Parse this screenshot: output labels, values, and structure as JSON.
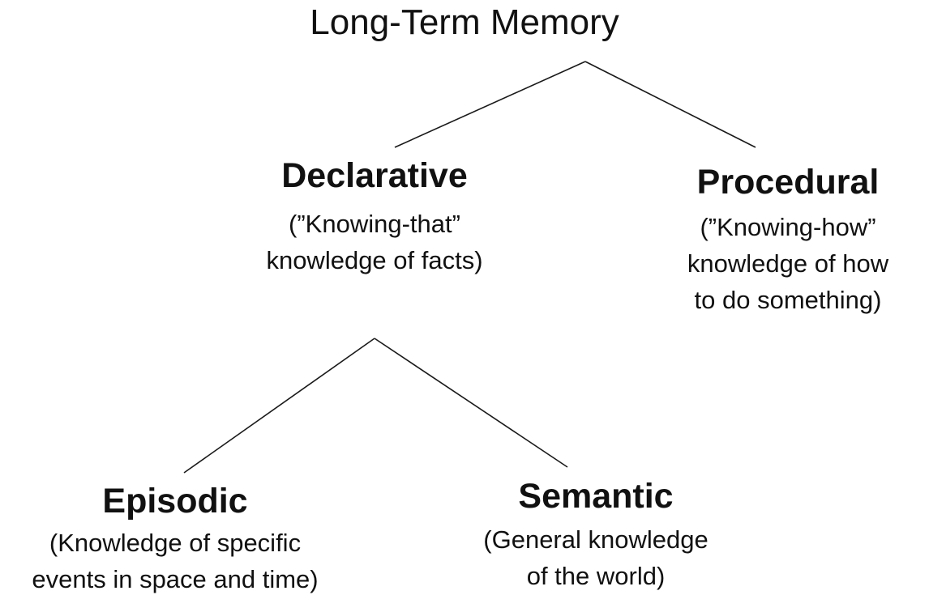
{
  "root": {
    "title": "Long-Term Memory"
  },
  "declarative": {
    "title": "Declarative",
    "desc_line1": "(”Knowing-that”",
    "desc_line2": "knowledge of facts)"
  },
  "procedural": {
    "title": "Procedural",
    "desc_line1": "(”Knowing-how”",
    "desc_line2": "knowledge of how",
    "desc_line3": "to do something)"
  },
  "episodic": {
    "title": "Episodic",
    "desc_line1": "(Knowledge of specific",
    "desc_line2": "events in space and time)"
  },
  "semantic": {
    "title": "Semantic",
    "desc_line1": "(General knowledge",
    "desc_line2": "of the world)"
  },
  "colors": {
    "text": "#111111",
    "lines": "#1a1a1a",
    "background": "#ffffff"
  }
}
